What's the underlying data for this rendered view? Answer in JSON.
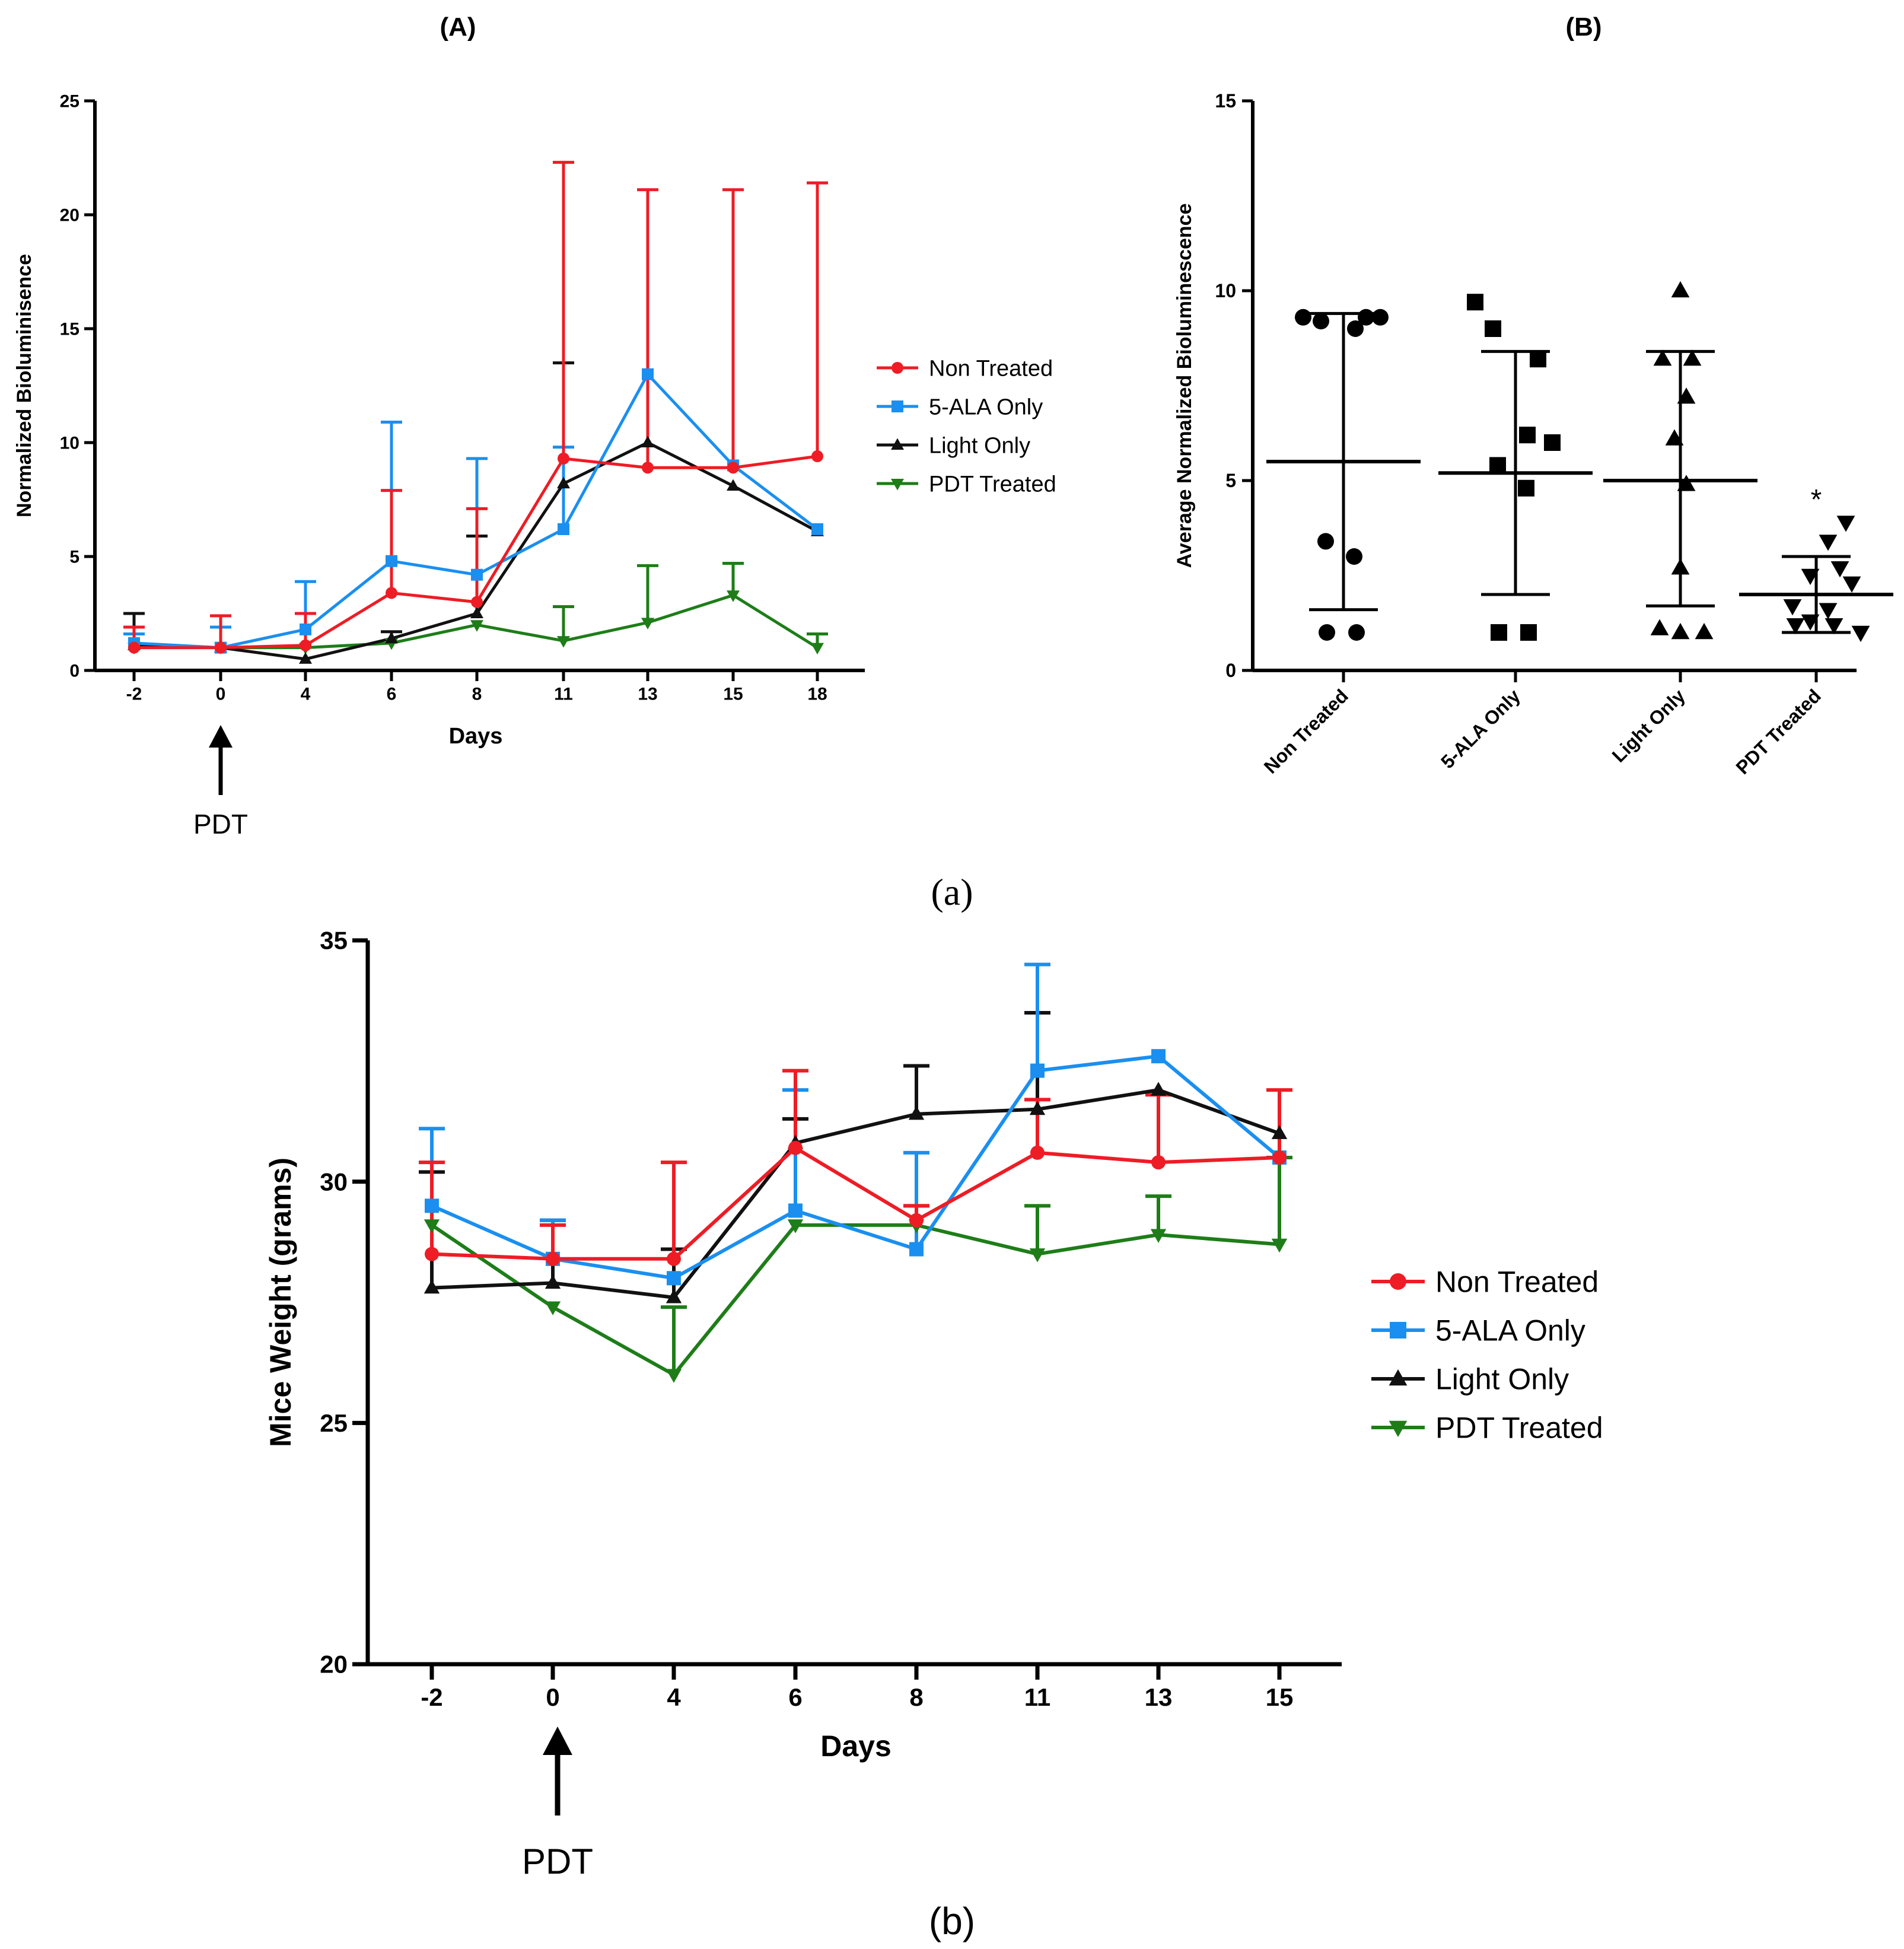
{
  "figure": {
    "caption_a": "(a)",
    "caption_b": "(b)"
  },
  "chart_data": [
    {
      "id": "A",
      "panel_label": "(A)",
      "type": "line",
      "title": "",
      "xlabel": "Days",
      "ylabel": "Normalized Bioluminisence",
      "categories": [
        "-2",
        "0",
        "4",
        "6",
        "8",
        "11",
        "13",
        "15",
        "18"
      ],
      "ylim": [
        0,
        25
      ],
      "yticks": [
        0,
        5,
        10,
        15,
        20,
        25
      ],
      "grid": false,
      "legend_position": "right",
      "annotation": {
        "text": "PDT",
        "at_category": "0"
      },
      "series": [
        {
          "name": "Non Treated",
          "color": "#ee1c25",
          "marker": "circle",
          "values": [
            1.0,
            1.0,
            1.1,
            3.4,
            3.0,
            9.3,
            8.9,
            8.9,
            9.4
          ],
          "err_upper": [
            1.9,
            2.4,
            2.5,
            7.9,
            7.1,
            22.3,
            21.1,
            21.1,
            21.4
          ]
        },
        {
          "name": "5-ALA Only",
          "color": "#1a8ff0",
          "marker": "square",
          "values": [
            1.2,
            1.0,
            1.8,
            4.8,
            4.2,
            6.2,
            13.0,
            9.0,
            6.2
          ],
          "err_upper": [
            1.6,
            1.9,
            3.9,
            10.9,
            9.3,
            9.8,
            13.0,
            9.0,
            6.2
          ]
        },
        {
          "name": "Light Only",
          "color": "#111111",
          "marker": "triangle-up",
          "values": [
            1.1,
            1.0,
            0.5,
            1.4,
            2.5,
            8.2,
            10.0,
            8.1,
            6.1
          ],
          "err_upper": [
            2.5,
            1.0,
            0.5,
            1.7,
            5.9,
            13.5,
            10.0,
            8.1,
            6.1
          ]
        },
        {
          "name": "PDT Treated",
          "color": "#1e7d18",
          "marker": "triangle-down",
          "values": [
            1.0,
            1.0,
            1.0,
            1.2,
            2.0,
            1.3,
            2.1,
            3.3,
            1.0
          ],
          "err_upper": [
            1.0,
            1.0,
            1.0,
            1.2,
            2.0,
            2.8,
            4.6,
            4.7,
            1.6
          ]
        }
      ]
    },
    {
      "id": "B",
      "panel_label": "(B)",
      "type": "scatter",
      "title": "",
      "xlabel": "",
      "ylabel": "Average Normalized Bioluminescence",
      "categories": [
        "Non Treated",
        "5-ALA Only",
        "Light Only",
        "PDT Treated"
      ],
      "ylim": [
        0,
        15
      ],
      "yticks": [
        0,
        5,
        10,
        15
      ],
      "grid": false,
      "groups": [
        {
          "name": "Non Treated",
          "marker": "circle",
          "points": [
            9.3,
            9.2,
            9.3,
            9.0,
            9.3,
            3.4,
            3.0,
            1.0,
            1.0
          ],
          "mean": 5.5,
          "err_low": 1.6,
          "err_high": 9.4,
          "annotation": ""
        },
        {
          "name": "5-ALA Only",
          "marker": "square",
          "points": [
            9.7,
            9.0,
            8.2,
            6.2,
            6.0,
            5.4,
            4.8,
            1.0,
            1.0
          ],
          "mean": 5.2,
          "err_low": 2.0,
          "err_high": 8.4,
          "annotation": ""
        },
        {
          "name": "Light Only",
          "marker": "triangle-up",
          "points": [
            10.0,
            8.2,
            8.2,
            7.2,
            6.1,
            4.9,
            2.7,
            1.1,
            1.0,
            1.0
          ],
          "mean": 5.0,
          "err_low": 1.7,
          "err_high": 8.4,
          "annotation": ""
        },
        {
          "name": "PDT Treated",
          "marker": "triangle-down",
          "points": [
            3.9,
            3.4,
            2.7,
            2.5,
            2.3,
            1.7,
            1.6,
            1.2,
            1.2,
            1.3,
            1.0
          ],
          "mean": 2.0,
          "err_low": 1.0,
          "err_high": 3.0,
          "annotation": "*"
        }
      ]
    },
    {
      "id": "b",
      "type": "line",
      "title": "",
      "xlabel": "Days",
      "ylabel": "Mice Weight (grams)",
      "categories": [
        "-2",
        "0",
        "4",
        "6",
        "8",
        "11",
        "13",
        "15"
      ],
      "ylim": [
        20,
        35
      ],
      "yticks": [
        20,
        25,
        30,
        35
      ],
      "grid": false,
      "legend_position": "right",
      "annotation": {
        "text": "PDT",
        "at_category": "0"
      },
      "series": [
        {
          "name": "Non Treated",
          "color": "#ee1c25",
          "marker": "circle",
          "values": [
            28.5,
            28.4,
            28.4,
            30.7,
            29.2,
            30.6,
            30.4,
            30.5
          ],
          "err_upper": [
            30.4,
            29.1,
            30.4,
            32.3,
            29.5,
            31.7,
            31.8,
            31.9
          ]
        },
        {
          "name": "5-ALA Only",
          "color": "#1a8ff0",
          "marker": "square",
          "values": [
            29.5,
            28.4,
            28.0,
            29.4,
            28.6,
            32.3,
            32.6,
            30.5
          ],
          "err_upper": [
            31.1,
            29.2,
            28.0,
            31.9,
            30.6,
            34.5,
            32.6,
            30.5
          ]
        },
        {
          "name": "Light Only",
          "color": "#111111",
          "marker": "triangle-up",
          "values": [
            27.8,
            27.9,
            27.6,
            30.8,
            31.4,
            31.5,
            31.9,
            31.0
          ],
          "err_upper": [
            30.2,
            29.2,
            28.6,
            31.3,
            32.4,
            33.5,
            31.9,
            31.0
          ]
        },
        {
          "name": "PDT Treated",
          "color": "#1e7d18",
          "marker": "triangle-down",
          "values": [
            29.1,
            27.4,
            26.0,
            29.1,
            29.1,
            28.5,
            28.9,
            28.7
          ],
          "err_upper": [
            29.1,
            27.4,
            27.4,
            29.1,
            29.5,
            29.5,
            29.7,
            30.5
          ]
        }
      ]
    }
  ]
}
